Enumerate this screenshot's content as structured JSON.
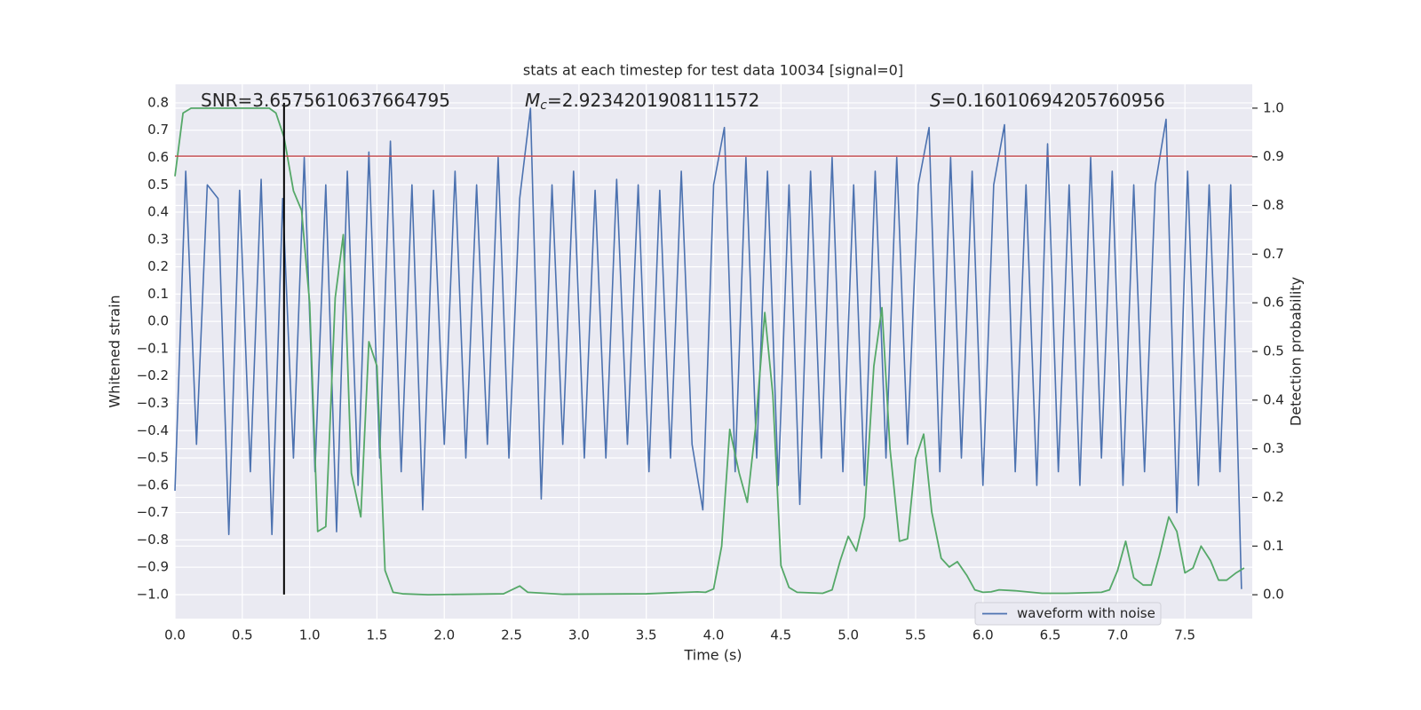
{
  "chart_data": {
    "type": "line",
    "title": "stats at each timestep for test data 10034 [signal=0]",
    "xlabel": "Time (s)",
    "ylabel": "Whitened strain",
    "y2label": "Detection probability",
    "xlim": [
      0,
      8
    ],
    "ylim": [
      -1.088,
      0.868
    ],
    "y2lim": [
      -0.049,
      1.049
    ],
    "xticks": [
      {
        "value": 0,
        "label": "0.0"
      },
      0.5,
      {
        "value": 1,
        "label": "1.0"
      },
      1.5,
      {
        "value": 2,
        "label": "2.0"
      },
      2.5,
      {
        "value": 3,
        "label": "3.0"
      },
      3.5,
      {
        "value": 4,
        "label": "4.0"
      },
      4.5,
      {
        "value": 5,
        "label": "5.0"
      },
      5.5,
      {
        "value": 6,
        "label": "6.0"
      },
      6.5,
      {
        "value": 7,
        "label": "7.0"
      },
      7.5
    ],
    "yticks": [
      0.8,
      0.7,
      0.6,
      0.5,
      0.4,
      0.3,
      0.2,
      0.1,
      {
        "value": 0,
        "label": "0.0"
      },
      {
        "value": -0.1,
        "label": "−0.1"
      },
      {
        "value": -0.2,
        "label": "−0.2"
      },
      {
        "value": -0.3,
        "label": "−0.3"
      },
      {
        "value": -0.4,
        "label": "−0.4"
      },
      {
        "value": -0.5,
        "label": "−0.5"
      },
      {
        "value": -0.6,
        "label": "−0.6"
      },
      {
        "value": -0.7,
        "label": "−0.7"
      },
      {
        "value": -0.8,
        "label": "−0.8"
      },
      {
        "value": -0.9,
        "label": "−0.9"
      },
      {
        "value": -1,
        "label": "−1.0"
      }
    ],
    "y2ticks": [
      {
        "value": 1,
        "label": "1.0"
      },
      0.9,
      0.8,
      0.7,
      0.6,
      0.5,
      0.4,
      0.3,
      0.2,
      0.1,
      {
        "value": 0,
        "label": "0.0"
      }
    ],
    "grid": true,
    "legend": "lower right",
    "series": [
      {
        "name": "waveform with noise",
        "color": "#4c72b0",
        "axis": "y",
        "x": [
          0,
          0.08,
          0.16,
          0.24,
          0.32,
          0.4,
          0.48,
          0.56,
          0.64,
          0.72,
          0.8,
          0.88,
          0.96,
          1.04,
          1.12,
          1.2,
          1.28,
          1.36,
          1.44,
          1.52,
          1.6,
          1.68,
          1.76,
          1.84,
          1.92,
          2,
          2.08,
          2.16,
          2.24,
          2.32,
          2.4,
          2.48,
          2.56,
          2.64,
          2.72,
          2.8,
          2.88,
          2.96,
          3.04,
          3.12,
          3.2,
          3.28,
          3.36,
          3.44,
          3.52,
          3.6,
          3.68,
          3.76,
          3.84,
          3.92,
          4,
          4.08,
          4.16,
          4.24,
          4.32,
          4.4,
          4.48,
          4.56,
          4.64,
          4.72,
          4.8,
          4.88,
          4.96,
          5.04,
          5.12,
          5.2,
          5.28,
          5.36,
          5.44,
          5.52,
          5.6,
          5.68,
          5.76,
          5.84,
          5.92,
          6,
          6.08,
          6.16,
          6.24,
          6.32,
          6.4,
          6.48,
          6.56,
          6.64,
          6.72,
          6.8,
          6.88,
          6.96,
          7.04,
          7.12,
          7.2,
          7.28,
          7.36,
          7.44,
          7.52,
          7.6,
          7.68,
          7.76,
          7.84,
          7.92
        ],
        "values": [
          -0.62,
          0.55,
          -0.45,
          0.5,
          0.45,
          -0.78,
          0.48,
          -0.55,
          0.52,
          -0.78,
          0.45,
          -0.5,
          0.6,
          -0.55,
          0.5,
          -0.77,
          0.55,
          -0.6,
          0.62,
          -0.5,
          0.66,
          -0.55,
          0.5,
          -0.69,
          0.48,
          -0.45,
          0.55,
          -0.5,
          0.5,
          -0.45,
          0.6,
          -0.5,
          0.45,
          0.78,
          -0.65,
          0.5,
          -0.45,
          0.55,
          -0.5,
          0.48,
          -0.5,
          0.52,
          -0.45,
          0.5,
          -0.55,
          0.48,
          -0.5,
          0.55,
          -0.45,
          -0.69,
          0.5,
          0.71,
          -0.55,
          0.6,
          -0.5,
          0.55,
          -0.6,
          0.5,
          -0.67,
          0.55,
          -0.5,
          0.6,
          -0.55,
          0.5,
          -0.6,
          0.55,
          -0.5,
          0.6,
          -0.45,
          0.5,
          0.71,
          -0.55,
          0.6,
          -0.5,
          0.55,
          -0.6,
          0.5,
          0.72,
          -0.55,
          0.5,
          -0.6,
          0.65,
          -0.55,
          0.5,
          -0.6,
          0.6,
          -0.5,
          0.55,
          -0.6,
          0.5,
          -0.55,
          0.5,
          0.74,
          -0.7,
          0.55,
          -0.6,
          0.5,
          -0.55,
          0.5,
          -0.98
        ]
      },
      {
        "color": "#55a868",
        "axis": "y2",
        "x": [
          0,
          0.06,
          0.12,
          0.7,
          0.75,
          0.81,
          0.88,
          0.94,
          1,
          1.06,
          1.12,
          1.19,
          1.25,
          1.31,
          1.38,
          1.44,
          1.5,
          1.56,
          1.62,
          1.69,
          1.88,
          2.44,
          2.56,
          2.62,
          2.75,
          2.88,
          3.5,
          3.88,
          3.94,
          4,
          4.06,
          4.12,
          4.19,
          4.25,
          4.31,
          4.38,
          4.44,
          4.5,
          4.56,
          4.62,
          4.81,
          4.88,
          4.94,
          5,
          5.06,
          5.12,
          5.19,
          5.25,
          5.31,
          5.38,
          5.44,
          5.5,
          5.56,
          5.62,
          5.69,
          5.75,
          5.81,
          5.88,
          5.94,
          6,
          6.06,
          6.12,
          6.25,
          6.44,
          6.62,
          6.88,
          6.94,
          7,
          7.06,
          7.12,
          7.19,
          7.25,
          7.31,
          7.38,
          7.44,
          7.5,
          7.56,
          7.62,
          7.69,
          7.75,
          7.81,
          7.88,
          7.94
        ],
        "values": [
          0.86,
          0.99,
          1,
          1,
          0.99,
          0.94,
          0.83,
          0.79,
          0.6,
          0.13,
          0.14,
          0.61,
          0.74,
          0.25,
          0.16,
          0.52,
          0.47,
          0.05,
          0.005,
          0.002,
          0,
          0.002,
          0.018,
          0.005,
          0.003,
          0.001,
          0.002,
          0.006,
          0.005,
          0.012,
          0.1,
          0.34,
          0.25,
          0.19,
          0.34,
          0.58,
          0.41,
          0.06,
          0.015,
          0.005,
          0.003,
          0.01,
          0.07,
          0.12,
          0.09,
          0.16,
          0.47,
          0.59,
          0.3,
          0.11,
          0.115,
          0.28,
          0.33,
          0.17,
          0.075,
          0.057,
          0.068,
          0.04,
          0.01,
          0.005,
          0.006,
          0.01,
          0.008,
          0.003,
          0.003,
          0.005,
          0.01,
          0.05,
          0.11,
          0.035,
          0.02,
          0.02,
          0.08,
          0.16,
          0.13,
          0.045,
          0.055,
          0.1,
          0.07,
          0.03,
          0.03,
          0.045,
          0.055
        ]
      }
    ],
    "hline": {
      "y": 0.605,
      "color": "#c44e52"
    },
    "vline": {
      "x": 0.81,
      "ymin": -1,
      "ymax": 0.8,
      "color": "#000000"
    },
    "annotations": [
      {
        "text": "SNR=3.6575610637664795"
      },
      {
        "symbol": "M",
        "subscript": "c",
        "text": "=2.9234201908111572"
      },
      {
        "symbol": "S",
        "text": "=0.16010694205760956"
      }
    ]
  }
}
